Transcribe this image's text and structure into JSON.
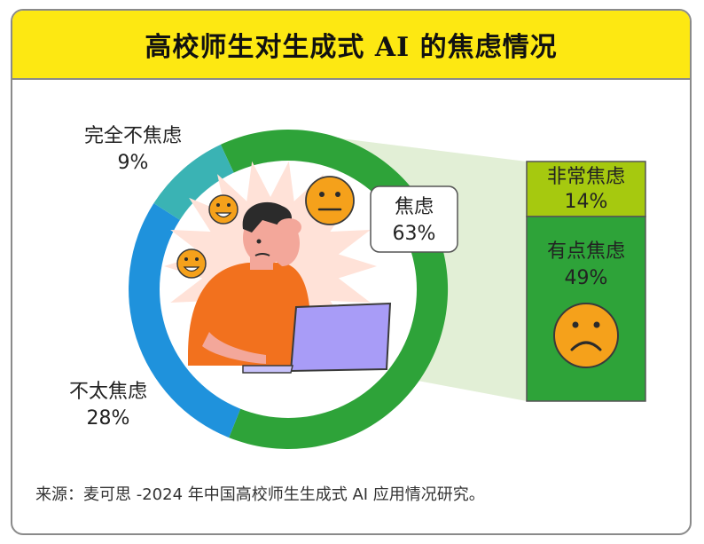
{
  "header": {
    "title": "高校师生对生成式 AI 的焦虑情况"
  },
  "chart_data": {
    "type": "pie",
    "title": "高校师生对生成式 AI 的焦虑情况",
    "slices": [
      {
        "name": "焦虑",
        "value": 63,
        "label": "63%",
        "color": "#2ea339"
      },
      {
        "name": "不太焦虑",
        "value": 28,
        "label": "28%",
        "color": "#1f92dc"
      },
      {
        "name": "完全不焦虑",
        "value": 9,
        "label": "9%",
        "color": "#3ab3b4"
      }
    ],
    "breakdown": {
      "of": "焦虑",
      "items": [
        {
          "name": "非常焦虑",
          "value": 14,
          "label": "14%",
          "color": "#a6c90f"
        },
        {
          "name": "有点焦虑",
          "value": 49,
          "label": "49%",
          "color": "#2ea339"
        }
      ]
    },
    "hole_color": "#ffffff",
    "connector_color": "#e2efd6"
  },
  "footer": {
    "source": "来源：麦可思 -2024 年中国高校师生生成式 AI 应用情况研究。"
  },
  "icons": {
    "face_happy": "smile-emoji-icon",
    "face_neutral": "neutral-emoji-icon",
    "face_sad": "frown-emoji-icon",
    "person": "stressed-person-with-laptop-illustration",
    "face_color": "#f5a11b"
  }
}
